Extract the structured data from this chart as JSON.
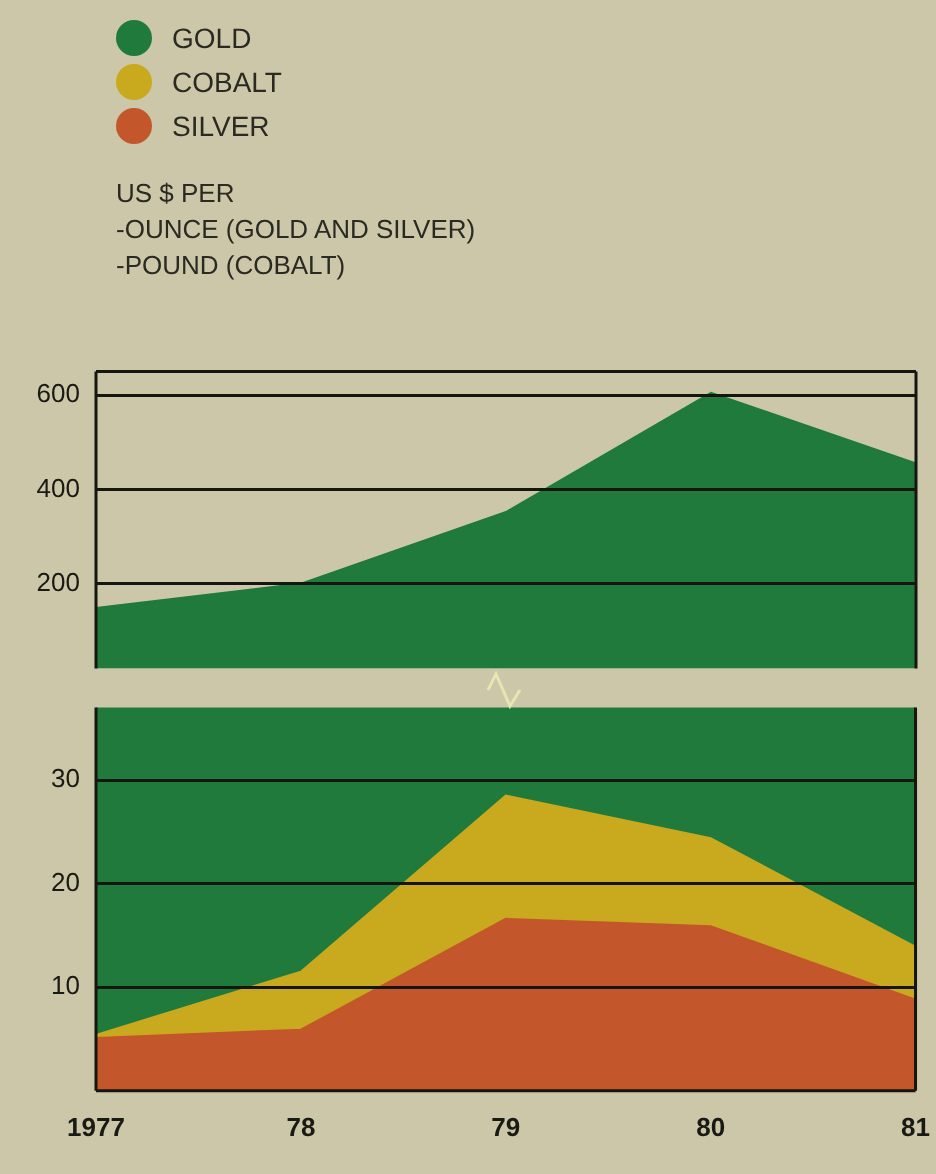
{
  "chart_data": [
    {
      "type": "area",
      "categories": [
        "1977",
        "78",
        "79",
        "80",
        "81"
      ],
      "ylabel": "US $ PER\n-OUNCE (GOLD AND SILVER)\n-POUND (COBALT)",
      "legend": "top left",
      "grid": "y",
      "tick_labels": "y",
      "ylim": [
        20,
        650
      ],
      "yticks": [
        200,
        400,
        600
      ],
      "series": [
        {
          "name": "GOLD",
          "color": "#1f7a3c",
          "values": [
            148,
            200,
            352,
            605,
            455
          ]
        }
      ]
    },
    {
      "type": "area",
      "categories": [
        "1977",
        "78",
        "79",
        "80",
        "81"
      ],
      "legend": "top left",
      "grid": "y",
      "ylim": [
        0,
        37
      ],
      "yticks": [
        10,
        20,
        30
      ],
      "series": [
        {
          "name": "COBALT",
          "color": "#c9a91e",
          "values": [
            5.4,
            11.5,
            28.5,
            24.4,
            13.9
          ]
        },
        {
          "name": "SILVER",
          "color": "#c4562b",
          "values": [
            5.1,
            5.9,
            16.6,
            15.9,
            8.8
          ]
        }
      ]
    }
  ]
}
